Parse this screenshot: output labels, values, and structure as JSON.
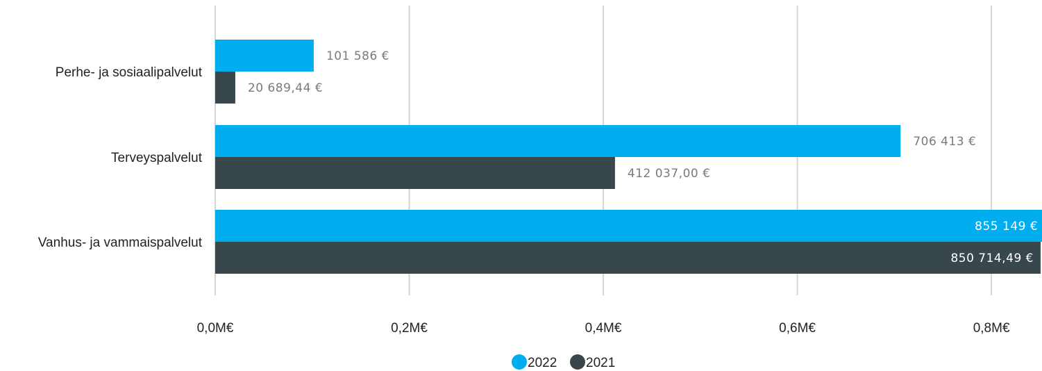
{
  "chart_data": {
    "type": "bar",
    "orientation": "horizontal",
    "categories": [
      "Perhe- ja sosiaalipalvelut",
      "Terveyspalvelut",
      "Vanhus- ja vammaispalvelut"
    ],
    "series": [
      {
        "name": "2022",
        "color": "#00ADEF",
        "values": [
          101586,
          706413,
          855149
        ],
        "labels": [
          "101 586 €",
          "706 413 €",
          "855 149 €"
        ]
      },
      {
        "name": "2021",
        "color": "#37474B",
        "values": [
          20689.44,
          412037.0,
          850714.49
        ],
        "labels": [
          "20 689,44 €",
          "412 037,00 €",
          "850 714,49 €"
        ]
      }
    ],
    "x_ticks": [
      0,
      200000,
      400000,
      600000,
      800000
    ],
    "x_tick_labels": [
      "0,0M€",
      "0,2M€",
      "0,4M€",
      "0,6M€",
      "0,8M€"
    ],
    "xlim": [
      0,
      850714.49
    ],
    "grid": true,
    "legend_position": "bottom-center"
  }
}
